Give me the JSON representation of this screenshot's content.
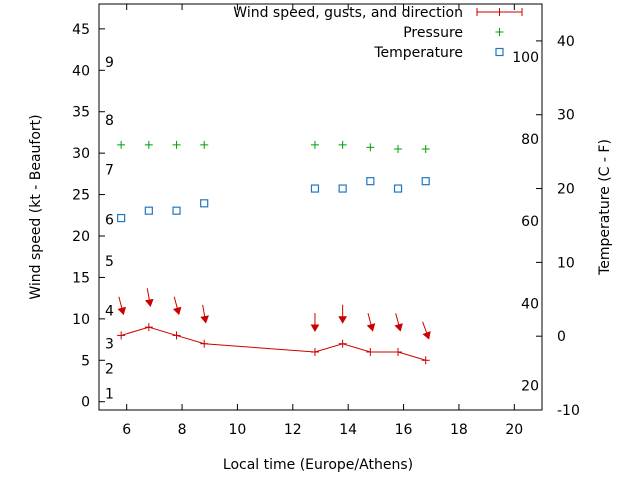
{
  "chart_data": {
    "type": "line",
    "xlabel": "Local time (Europe/Athens)",
    "ylabel": "Wind speed (kt - Beaufort)",
    "y2label": "Temperature (C - F)",
    "xlim": [
      5,
      21
    ],
    "ylim": [
      -1,
      48
    ],
    "y2lim": [
      -10,
      45
    ],
    "x_ticks": [
      6,
      8,
      10,
      12,
      14,
      16,
      18,
      20
    ],
    "y_ticks": [
      0,
      5,
      10,
      15,
      20,
      25,
      30,
      35,
      40,
      45
    ],
    "y2_ticks": [
      -10,
      0,
      10,
      20,
      30,
      40
    ],
    "beaufort_scale": [
      {
        "label": "1",
        "kt": 1
      },
      {
        "label": "2",
        "kt": 4
      },
      {
        "label": "3",
        "kt": 7
      },
      {
        "label": "4",
        "kt": 11
      },
      {
        "label": "5",
        "kt": 17
      },
      {
        "label": "6",
        "kt": 22
      },
      {
        "label": "7",
        "kt": 28
      },
      {
        "label": "8",
        "kt": 34
      },
      {
        "label": "9",
        "kt": 41
      }
    ],
    "fahrenheit_scale": [
      {
        "label": "20",
        "c": -6.7
      },
      {
        "label": "40",
        "c": 4.4
      },
      {
        "label": "60",
        "c": 15.6
      },
      {
        "label": "80",
        "c": 26.7
      },
      {
        "label": "100",
        "c": 37.8
      }
    ],
    "legend_position": "top-right",
    "series": [
      {
        "name": "Wind speed, gusts, and direction",
        "axis": "left",
        "x": [
          5.8,
          6.8,
          7.8,
          8.8,
          12.8,
          13.8,
          14.8,
          15.8,
          16.8
        ],
        "values": [
          8,
          9,
          8,
          7,
          6,
          7,
          6,
          6,
          5
        ],
        "direction_deg": [
          345,
          350,
          345,
          350,
          0,
          0,
          345,
          345,
          340
        ],
        "color": "#cc0000"
      },
      {
        "name": "Pressure",
        "axis": "left",
        "x": [
          5.8,
          6.8,
          7.8,
          8.8,
          12.8,
          13.8,
          14.8,
          15.8,
          16.8
        ],
        "values": [
          31,
          31,
          31,
          31,
          31,
          31,
          30.7,
          30.5,
          30.5
        ],
        "color": "#00a000"
      },
      {
        "name": "Temperature",
        "axis": "right",
        "x": [
          5.8,
          6.8,
          7.8,
          8.8,
          12.8,
          13.8,
          14.8,
          15.8,
          16.8
        ],
        "values": [
          16,
          17,
          17,
          18,
          20,
          20,
          21,
          20,
          21
        ],
        "color": "#1f77c4"
      }
    ]
  }
}
